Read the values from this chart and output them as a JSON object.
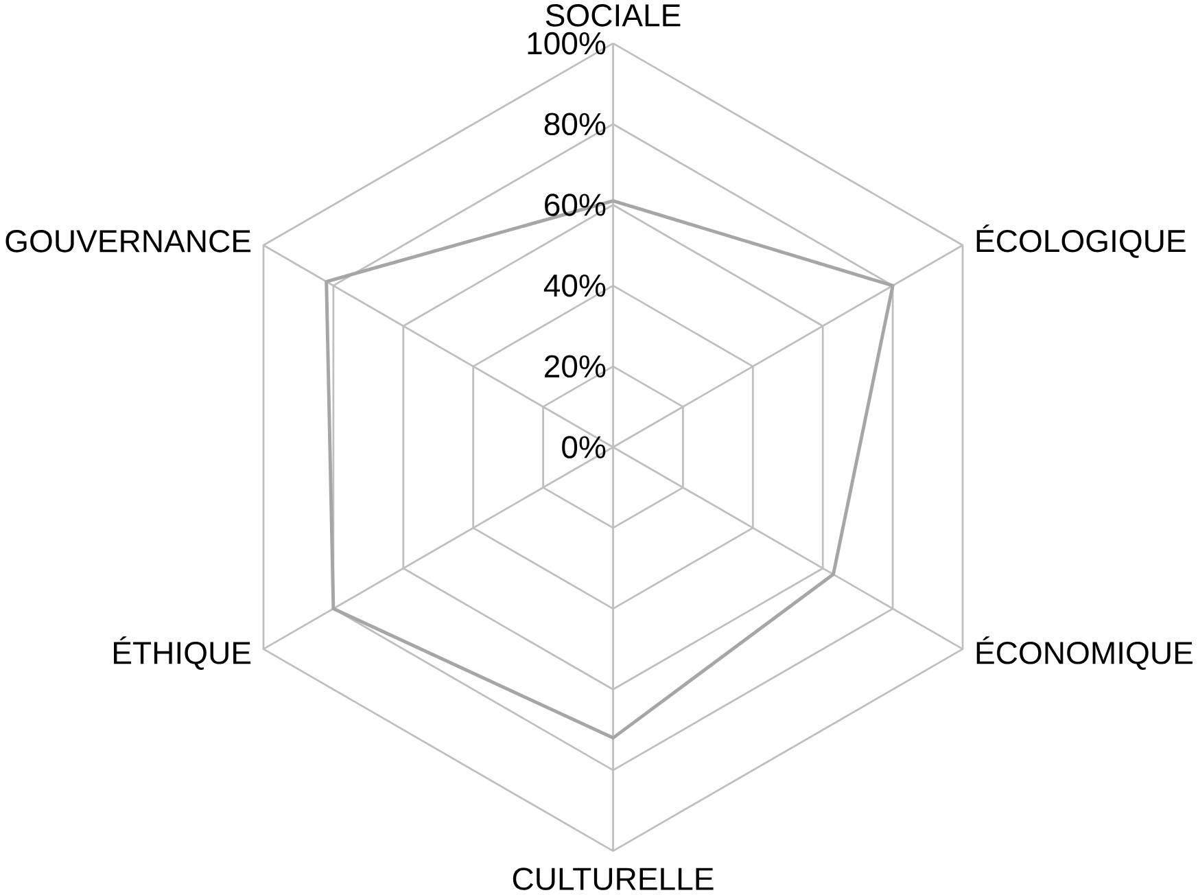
{
  "chart_data": {
    "type": "radar",
    "categories": [
      "SOCIALE",
      "ÉCOLOGIQUE",
      "ÉCONOMIQUE",
      "CULTURELLE",
      "ÉTHIQUE",
      "GOUVERNANCE"
    ],
    "series": [
      {
        "color": "#a6a6a6",
        "values": [
          61,
          80,
          63,
          72,
          80,
          82
        ]
      }
    ],
    "ylim": [
      0,
      100
    ],
    "yticks": [
      {
        "value": 0,
        "label": "0%"
      },
      {
        "value": 20,
        "label": "20%"
      },
      {
        "value": 40,
        "label": "40%"
      },
      {
        "value": 60,
        "label": "60%"
      },
      {
        "value": 80,
        "label": "80%"
      },
      {
        "value": 100,
        "label": "100%"
      }
    ],
    "grid": true
  }
}
